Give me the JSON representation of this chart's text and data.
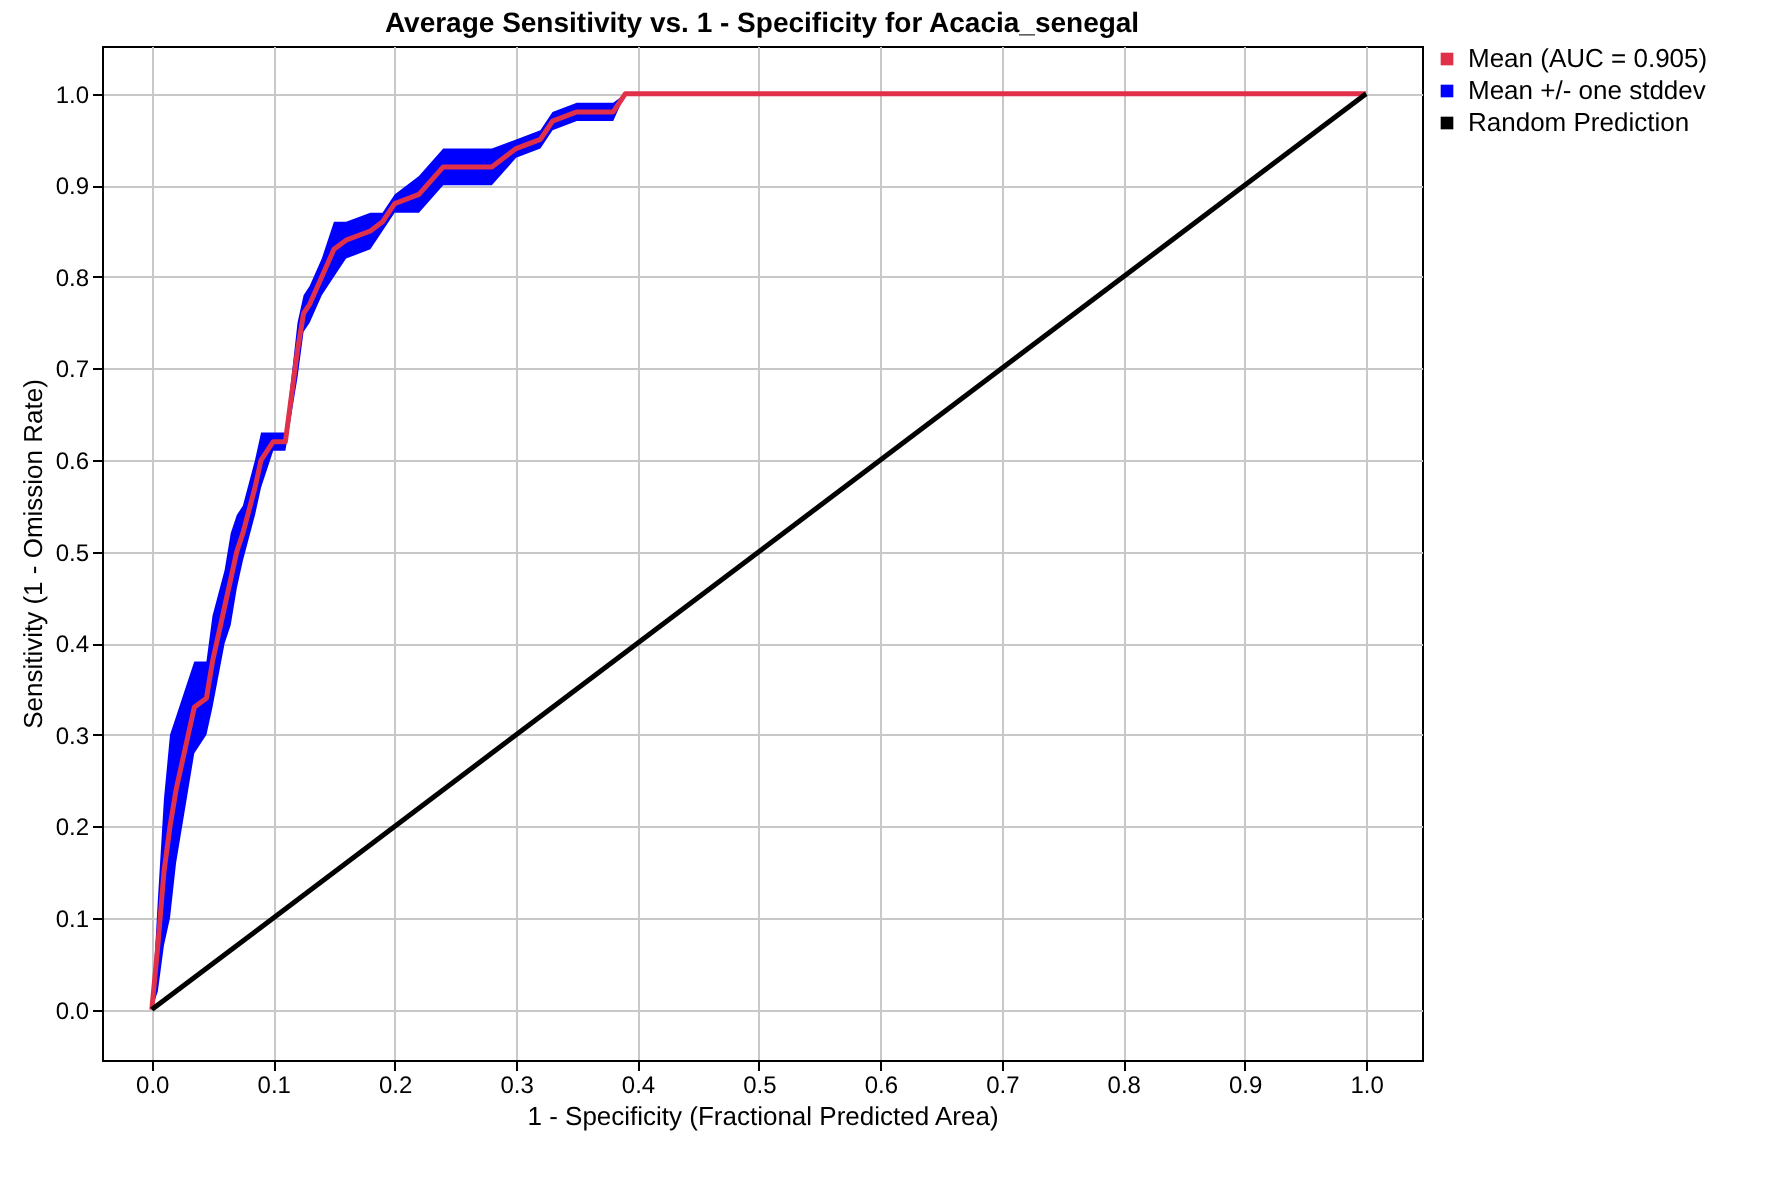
{
  "chart_data": {
    "type": "line",
    "title": "Average Sensitivity vs. 1 - Specificity for Acacia_senegal",
    "xlabel": "1 - Specificity (Fractional Predicted Area)",
    "ylabel": "Sensitivity (1 - Omission Rate)",
    "xlim": [
      -0.041,
      1.046
    ],
    "ylim": [
      -0.055,
      1.052
    ],
    "xticks": [
      {
        "value": 0,
        "label": "0.0"
      },
      0.1,
      0.2,
      0.3,
      0.4,
      0.5,
      0.6,
      0.7,
      0.8,
      0.9,
      {
        "value": 1,
        "label": "1.0"
      }
    ],
    "yticks": [
      {
        "value": 0,
        "label": "0.0"
      },
      0.1,
      0.2,
      0.3,
      0.4,
      0.5,
      0.6,
      0.7,
      0.8,
      0.9,
      {
        "value": 1,
        "label": "1.0"
      }
    ],
    "grid": true,
    "legend": "top right",
    "series": [
      {
        "name": "Mean (AUC = 0.905)",
        "color": "#e0304a",
        "x": [
          0,
          0.005,
          0.01,
          0.015,
          0.02,
          0.03,
          0.035,
          0.045,
          0.05,
          0.06,
          0.065,
          0.07,
          0.075,
          0.085,
          0.09,
          0.1,
          0.11,
          0.115,
          0.12,
          0.125,
          0.13,
          0.14,
          0.15,
          0.16,
          0.18,
          0.19,
          0.2,
          0.22,
          0.24,
          0.28,
          0.3,
          0.32,
          0.33,
          0.35,
          0.38,
          0.39,
          1
        ],
        "values": [
          0,
          0.07,
          0.15,
          0.2,
          0.24,
          0.3,
          0.33,
          0.34,
          0.38,
          0.44,
          0.47,
          0.5,
          0.52,
          0.57,
          0.6,
          0.62,
          0.62,
          0.67,
          0.72,
          0.76,
          0.77,
          0.8,
          0.83,
          0.84,
          0.85,
          0.86,
          0.88,
          0.89,
          0.92,
          0.92,
          0.94,
          0.95,
          0.97,
          0.98,
          0.98,
          1,
          1
        ],
        "lower": [
          0,
          0.02,
          0.07,
          0.1,
          0.16,
          0.24,
          0.28,
          0.3,
          0.33,
          0.4,
          0.42,
          0.46,
          0.49,
          0.54,
          0.57,
          0.61,
          0.61,
          0.65,
          0.69,
          0.74,
          0.75,
          0.78,
          0.8,
          0.82,
          0.83,
          0.85,
          0.87,
          0.87,
          0.9,
          0.9,
          0.93,
          0.94,
          0.96,
          0.97,
          0.97,
          1,
          1
        ],
        "upper": [
          0,
          0.12,
          0.23,
          0.3,
          0.32,
          0.36,
          0.38,
          0.38,
          0.43,
          0.48,
          0.52,
          0.54,
          0.55,
          0.6,
          0.63,
          0.63,
          0.63,
          0.69,
          0.75,
          0.78,
          0.79,
          0.82,
          0.86,
          0.86,
          0.87,
          0.87,
          0.89,
          0.91,
          0.94,
          0.94,
          0.95,
          0.96,
          0.98,
          0.99,
          0.99,
          1,
          1
        ]
      },
      {
        "name": "Mean +/- one stddev",
        "color": "#0000ff"
      },
      {
        "name": "Random Prediction",
        "color": "#000000",
        "x": [
          0,
          1
        ],
        "values": [
          0,
          1
        ]
      }
    ]
  }
}
